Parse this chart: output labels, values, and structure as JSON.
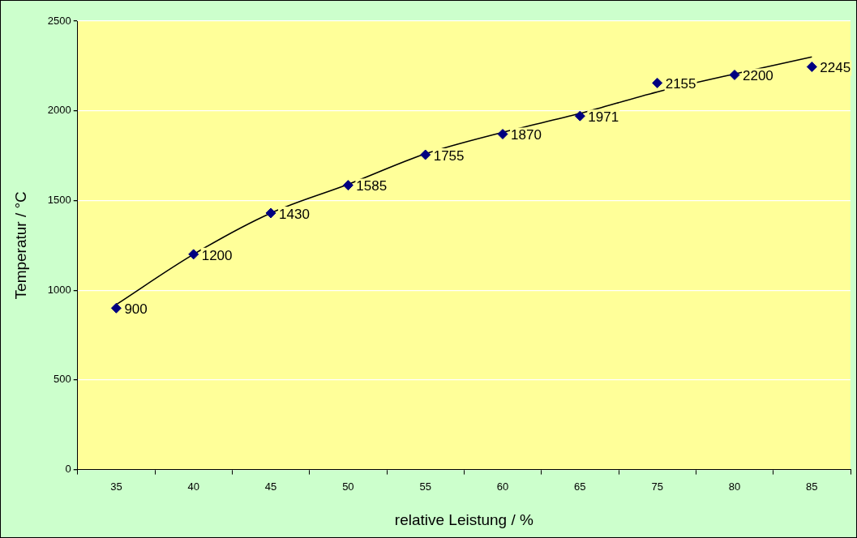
{
  "chart_data": {
    "type": "line",
    "xlabel": "relative Leistung / %",
    "ylabel": "Temperatur / °C",
    "categories": [
      "35",
      "40",
      "45",
      "50",
      "55",
      "60",
      "65",
      "75",
      "80",
      "85"
    ],
    "series": [
      {
        "type": "scatter",
        "color": "#000080",
        "marker": "diamond",
        "data_labels": true,
        "values": [
          900,
          1200,
          1430,
          1585,
          1755,
          1870,
          1971,
          2155,
          2200,
          2245
        ]
      },
      {
        "color": "#000000",
        "marker": "none",
        "line_style": "solid",
        "values": [
          920,
          1200,
          1430,
          1590,
          1760,
          1880,
          1985,
          2105,
          2205,
          2300
        ]
      }
    ],
    "ylim": [
      0,
      2500
    ],
    "yticks": [
      0,
      500,
      1000,
      1500,
      2000,
      2500
    ],
    "grid": "y",
    "legend": false
  }
}
